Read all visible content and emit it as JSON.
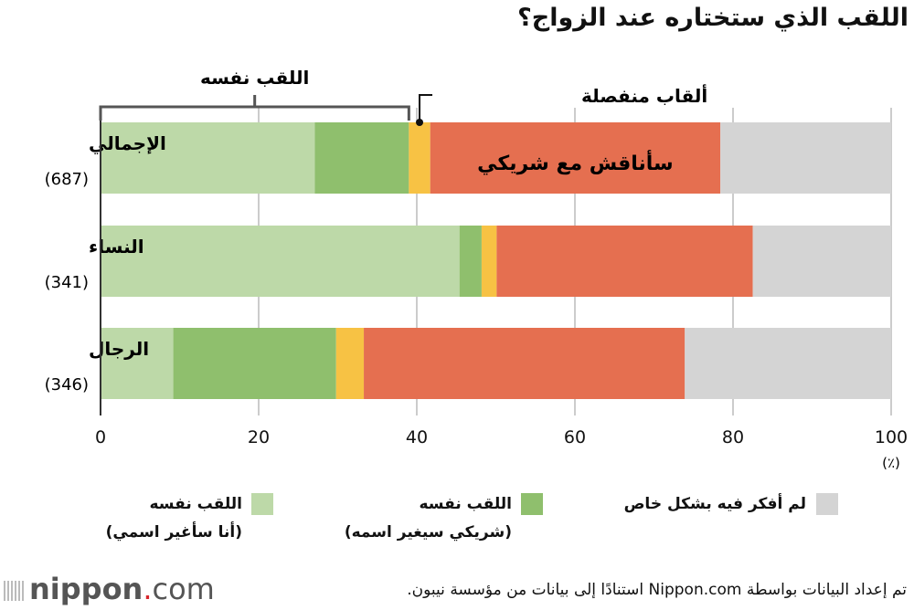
{
  "chart_data": {
    "type": "bar",
    "orientation": "horizontal",
    "stacked": true,
    "title": "اللقب الذي ستختاره عند الزواج؟",
    "categories": [
      {
        "label": "الإجمالي",
        "n": "(687)"
      },
      {
        "label": "النساء",
        "n": "(341)"
      },
      {
        "label": "الرجال",
        "n": "(346)"
      }
    ],
    "series": [
      {
        "name": "اللقب نفسه (أنا سأغير اسمي)",
        "color": "#bdd9a8",
        "values": [
          27.1,
          45.4,
          9.2
        ]
      },
      {
        "name": "اللقب نفسه (شريكي سيغير اسمه)",
        "color": "#8fbf6d",
        "values": [
          11.9,
          2.8,
          20.6
        ]
      },
      {
        "name": "ألقاب منفصلة",
        "color": "#f7c244",
        "values": [
          2.7,
          1.9,
          3.5
        ]
      },
      {
        "name": "سأناقش مع شريكي",
        "color": "#e56f50",
        "values": [
          36.7,
          32.4,
          40.6
        ]
      },
      {
        "name": "لم أفكر فيه بشكل خاص",
        "color": "#d4d4d4",
        "values": [
          21.6,
          17.5,
          26.1
        ]
      }
    ],
    "xlim": [
      0,
      100
    ],
    "xticks": [
      "0",
      "20",
      "40",
      "60",
      "80",
      "100"
    ],
    "xunit": "(٪)",
    "grid": true,
    "annotations": {
      "bracket_label": "اللقب نفسه",
      "separate_label": "ألقاب منفصلة",
      "discuss_label": "سأناقش مع شريكي"
    }
  },
  "legend": [
    {
      "line1": "لم أفكر فيه بشكل خاص",
      "line2": "",
      "color": "#d4d4d4"
    },
    {
      "line1": "اللقب نفسه",
      "line2": "(شريكي سيغير اسمه)",
      "color": "#8fbf6d"
    },
    {
      "line1": "اللقب نفسه",
      "line2": "(أنا سأغير اسمي)",
      "color": "#bdd9a8"
    }
  ],
  "footer": {
    "source": "تم إعداد البيانات بواسطة Nippon.com استنادًا إلى بيانات من مؤسسة نيبون.",
    "logo_main": "nippon",
    "logo_dot": ".",
    "logo_com": "com"
  }
}
